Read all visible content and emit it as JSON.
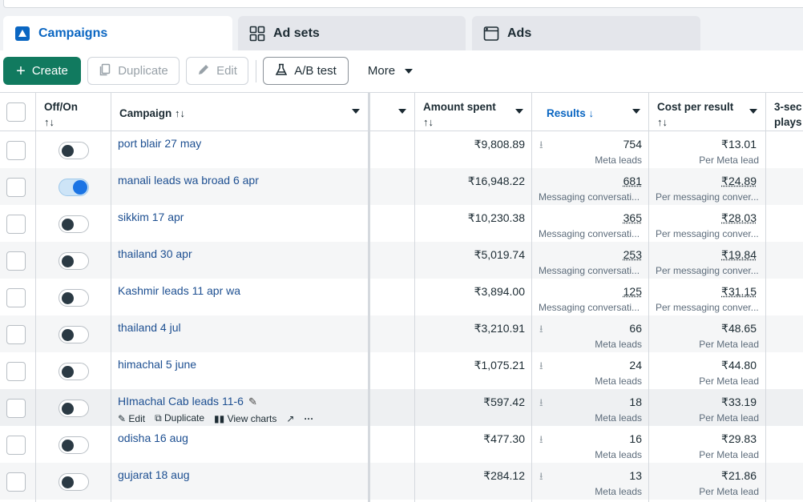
{
  "tabs": [
    {
      "label": "Campaigns",
      "icon": "campaigns-icon",
      "active": true
    },
    {
      "label": "Ad sets",
      "icon": "adsets-grid-icon",
      "active": false
    },
    {
      "label": "Ads",
      "icon": "ads-window-icon",
      "active": false
    }
  ],
  "toolbar": {
    "create": "Create",
    "duplicate": "Duplicate",
    "edit": "Edit",
    "ab_test": "A/B test",
    "more": "More"
  },
  "columns": {
    "offon": "Off/On",
    "campaign": "Campaign",
    "amount_spent": "Amount spent",
    "results": "Results",
    "cost_per_result": "Cost per result",
    "three_sec": "3-sec",
    "three_sec_2": "plays"
  },
  "row_tools": {
    "edit": "Edit",
    "duplicate": "Duplicate",
    "view_charts": "View charts"
  },
  "rows": [
    {
      "name": "port blair 27 may",
      "on": false,
      "amount": "₹9,808.89",
      "results": "754",
      "results_type": "Meta leads",
      "cpr": "₹13.01",
      "cpr_type": "Per Meta lead"
    },
    {
      "name": "manali leads wa broad 6 apr",
      "on": true,
      "amount": "₹16,948.22",
      "results": "681",
      "results_type": "Messaging conversati...",
      "cpr": "₹24.89",
      "cpr_type": "Per messaging conver..."
    },
    {
      "name": "sikkim 17 apr",
      "on": false,
      "amount": "₹10,230.38",
      "results": "365",
      "results_type": "Messaging conversati...",
      "cpr": "₹28.03",
      "cpr_type": "Per messaging conver..."
    },
    {
      "name": "thailand 30 apr",
      "on": false,
      "amount": "₹5,019.74",
      "results": "253",
      "results_type": "Messaging conversati...",
      "cpr": "₹19.84",
      "cpr_type": "Per messaging conver..."
    },
    {
      "name": "Kashmir leads 11 apr wa",
      "on": false,
      "amount": "₹3,894.00",
      "results": "125",
      "results_type": "Messaging conversati...",
      "cpr": "₹31.15",
      "cpr_type": "Per messaging conver..."
    },
    {
      "name": "thailand 4 jul",
      "on": false,
      "amount": "₹3,210.91",
      "results": "66",
      "results_type": "Meta leads",
      "cpr": "₹48.65",
      "cpr_type": "Per Meta lead"
    },
    {
      "name": "himachal 5 june",
      "on": false,
      "amount": "₹1,075.21",
      "results": "24",
      "results_type": "Meta leads",
      "cpr": "₹44.80",
      "cpr_type": "Per Meta lead"
    },
    {
      "name": "HImachal Cab leads 11-6",
      "on": false,
      "amount": "₹597.42",
      "results": "18",
      "results_type": "Meta leads",
      "cpr": "₹33.19",
      "cpr_type": "Per Meta lead"
    },
    {
      "name": "odisha 16 aug",
      "on": false,
      "amount": "₹477.30",
      "results": "16",
      "results_type": "Meta leads",
      "cpr": "₹29.83",
      "cpr_type": "Per Meta lead"
    },
    {
      "name": "gujarat 18 aug",
      "on": false,
      "amount": "₹284.12",
      "results": "13",
      "results_type": "Meta leads",
      "cpr": "₹21.86",
      "cpr_type": "Per Meta lead"
    }
  ]
}
